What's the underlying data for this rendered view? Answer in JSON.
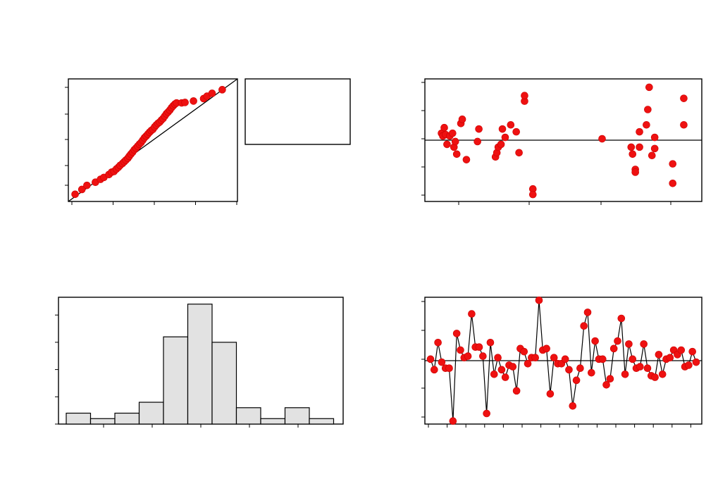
{
  "chart_data": [
    {
      "type": "scatter",
      "panel": "normal-probability-plot",
      "xlim": [
        -2.5,
        2.5
      ],
      "ylim": [
        -2.6,
        2.5
      ],
      "reference_line": {
        "from": [
          -2.5,
          -2.6
        ],
        "to": [
          2.5,
          2.5
        ]
      },
      "legend_box": true,
      "points": [
        [
          -2.3,
          -2.3
        ],
        [
          -2.1,
          -2.1
        ],
        [
          -1.95,
          -1.93
        ],
        [
          -1.7,
          -1.8
        ],
        [
          -1.55,
          -1.68
        ],
        [
          -1.45,
          -1.6
        ],
        [
          -1.3,
          -1.48
        ],
        [
          -1.22,
          -1.38
        ],
        [
          -1.15,
          -1.35
        ],
        [
          -1.08,
          -1.25
        ],
        [
          -1.02,
          -1.18
        ],
        [
          -0.97,
          -1.1
        ],
        [
          -0.9,
          -1.02
        ],
        [
          -0.85,
          -0.95
        ],
        [
          -0.8,
          -0.88
        ],
        [
          -0.74,
          -0.8
        ],
        [
          -0.7,
          -0.72
        ],
        [
          -0.65,
          -0.63
        ],
        [
          -0.6,
          -0.55
        ],
        [
          -0.55,
          -0.45
        ],
        [
          -0.5,
          -0.38
        ],
        [
          -0.45,
          -0.3
        ],
        [
          -0.4,
          -0.22
        ],
        [
          -0.35,
          -0.15
        ],
        [
          -0.3,
          -0.05
        ],
        [
          -0.25,
          0.05
        ],
        [
          -0.2,
          0.12
        ],
        [
          -0.15,
          0.2
        ],
        [
          -0.1,
          0.28
        ],
        [
          -0.05,
          0.35
        ],
        [
          0.0,
          0.4
        ],
        [
          0.05,
          0.5
        ],
        [
          0.1,
          0.58
        ],
        [
          0.15,
          0.65
        ],
        [
          0.2,
          0.7
        ],
        [
          0.25,
          0.78
        ],
        [
          0.3,
          0.85
        ],
        [
          0.35,
          0.95
        ],
        [
          0.4,
          1.05
        ],
        [
          0.45,
          1.12
        ],
        [
          0.5,
          1.2
        ],
        [
          0.55,
          1.3
        ],
        [
          0.6,
          1.38
        ],
        [
          0.65,
          1.45
        ],
        [
          0.7,
          1.5
        ],
        [
          0.85,
          1.5
        ],
        [
          0.95,
          1.52
        ],
        [
          1.2,
          1.58
        ],
        [
          1.5,
          1.68
        ],
        [
          1.6,
          1.78
        ],
        [
          1.75,
          1.9
        ],
        [
          2.05,
          2.05
        ]
      ]
    },
    {
      "type": "scatter",
      "panel": "residuals-versus-fits",
      "xlim": [
        0,
        10
      ],
      "ylim": [
        -2.2,
        2.2
      ],
      "reference_y": 0,
      "points": [
        [
          0.6,
          0.25
        ],
        [
          0.7,
          0.45
        ],
        [
          0.65,
          0.15
        ],
        [
          0.75,
          0.2
        ],
        [
          0.8,
          -0.15
        ],
        [
          0.9,
          0.15
        ],
        [
          1.0,
          0.25
        ],
        [
          1.05,
          -0.25
        ],
        [
          1.1,
          -0.05
        ],
        [
          1.15,
          -0.5
        ],
        [
          1.3,
          0.6
        ],
        [
          1.35,
          0.75
        ],
        [
          1.5,
          -0.7
        ],
        [
          1.95,
          0.4
        ],
        [
          1.9,
          -0.05
        ],
        [
          2.55,
          -0.6
        ],
        [
          2.6,
          -0.45
        ],
        [
          2.65,
          -0.25
        ],
        [
          2.75,
          -0.15
        ],
        [
          2.8,
          0.4
        ],
        [
          2.9,
          0.1
        ],
        [
          3.1,
          0.55
        ],
        [
          3.3,
          0.3
        ],
        [
          3.4,
          -0.45
        ],
        [
          3.6,
          1.4
        ],
        [
          3.6,
          1.6
        ],
        [
          3.9,
          -1.75
        ],
        [
          3.9,
          -1.95
        ],
        [
          6.4,
          0.05
        ],
        [
          7.45,
          -0.25
        ],
        [
          7.5,
          -0.5
        ],
        [
          7.6,
          -1.05
        ],
        [
          7.6,
          -1.15
        ],
        [
          7.75,
          -0.25
        ],
        [
          7.75,
          0.3
        ],
        [
          8.0,
          0.55
        ],
        [
          8.05,
          1.1
        ],
        [
          8.1,
          1.9
        ],
        [
          8.2,
          -0.55
        ],
        [
          8.3,
          -0.3
        ],
        [
          8.3,
          0.1
        ],
        [
          8.95,
          -0.85
        ],
        [
          8.95,
          -1.55
        ],
        [
          9.35,
          1.5
        ],
        [
          9.35,
          0.55
        ]
      ]
    },
    {
      "type": "bar",
      "panel": "histogram",
      "values": [
        2,
        1,
        2,
        4,
        16,
        22,
        15,
        3,
        1,
        3,
        1
      ],
      "ylim": [
        0,
        23
      ],
      "y_ticks": [
        0,
        5,
        10,
        15,
        20
      ]
    },
    {
      "type": "line",
      "panel": "residuals-versus-order",
      "xlim": [
        1,
        72
      ],
      "ylim": [
        -2.1,
        2.1
      ],
      "reference_y": 0,
      "values": [
        0.05,
        -0.3,
        0.6,
        -0.05,
        -0.25,
        -0.25,
        -2.0,
        0.9,
        0.35,
        0.1,
        0.15,
        1.55,
        0.45,
        0.45,
        0.15,
        -1.75,
        0.6,
        -0.45,
        0.1,
        -0.3,
        -0.55,
        -0.15,
        -0.2,
        -1.0,
        0.4,
        0.3,
        -0.1,
        0.1,
        0.1,
        2.0,
        0.35,
        0.4,
        -1.1,
        0.1,
        -0.1,
        -0.1,
        0.05,
        -0.3,
        -1.5,
        -0.65,
        -0.25,
        1.15,
        1.6,
        -0.4,
        0.65,
        0.05,
        0.05,
        -0.8,
        -0.6,
        0.4,
        0.65,
        1.4,
        -0.45,
        0.55,
        0.05,
        -0.25,
        -0.2,
        0.55,
        -0.25,
        -0.5,
        -0.55,
        0.2,
        -0.45,
        0.05,
        0.1,
        0.35,
        0.2,
        0.35,
        -0.2,
        -0.15,
        0.3,
        -0.05
      ]
    }
  ]
}
